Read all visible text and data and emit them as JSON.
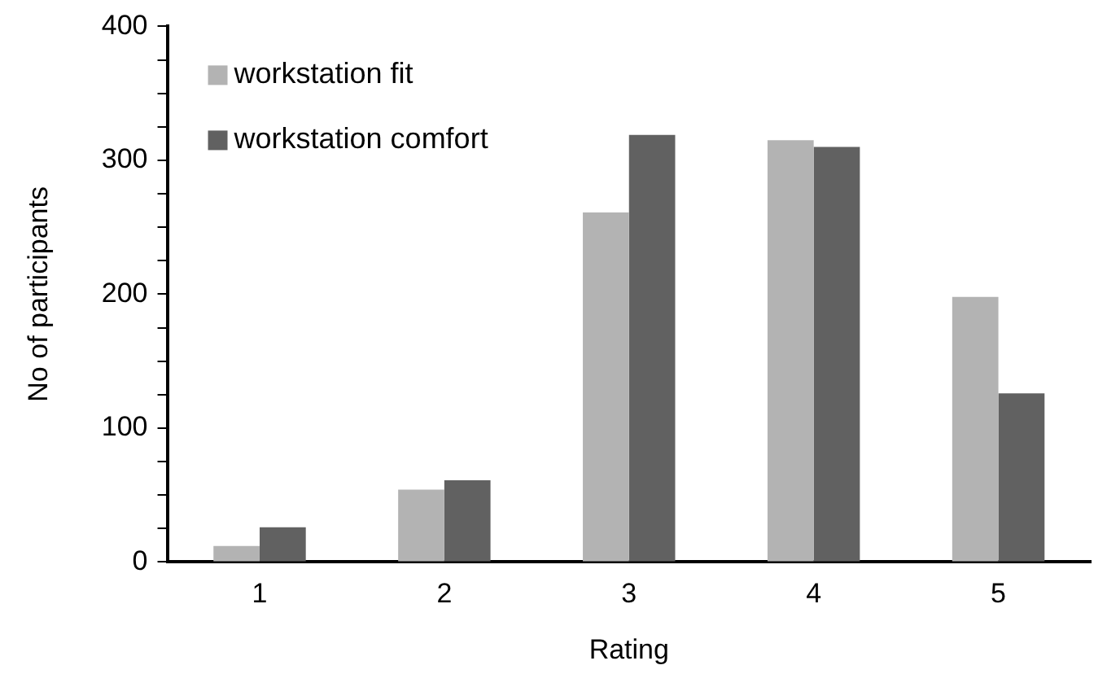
{
  "chart_data": {
    "type": "bar",
    "xlabel": "Rating",
    "ylabel": "No of participants",
    "categories": [
      "1",
      "2",
      "3",
      "4",
      "5"
    ],
    "series": [
      {
        "name": "workstation fit",
        "color": "#b3b3b3",
        "values": [
          12,
          54,
          261,
          315,
          198
        ]
      },
      {
        "name": "workstation comfort",
        "color": "#616161",
        "values": [
          26,
          61,
          319,
          310,
          126
        ]
      }
    ],
    "ylim": [
      0,
      400
    ],
    "yticks": [
      0,
      {
        "value": 25,
        "label": null
      },
      {
        "value": 50,
        "label": null
      },
      {
        "value": 75,
        "label": null
      },
      100,
      {
        "value": 125,
        "label": null
      },
      {
        "value": 150,
        "label": null
      },
      {
        "value": 175,
        "label": null
      },
      200,
      {
        "value": 225,
        "label": null
      },
      {
        "value": 250,
        "label": null
      },
      {
        "value": 275,
        "label": null
      },
      300,
      {
        "value": 325,
        "label": null
      },
      {
        "value": 350,
        "label": null
      },
      {
        "value": 375,
        "label": null
      },
      400
    ],
    "grid": false,
    "legend": "top left"
  }
}
